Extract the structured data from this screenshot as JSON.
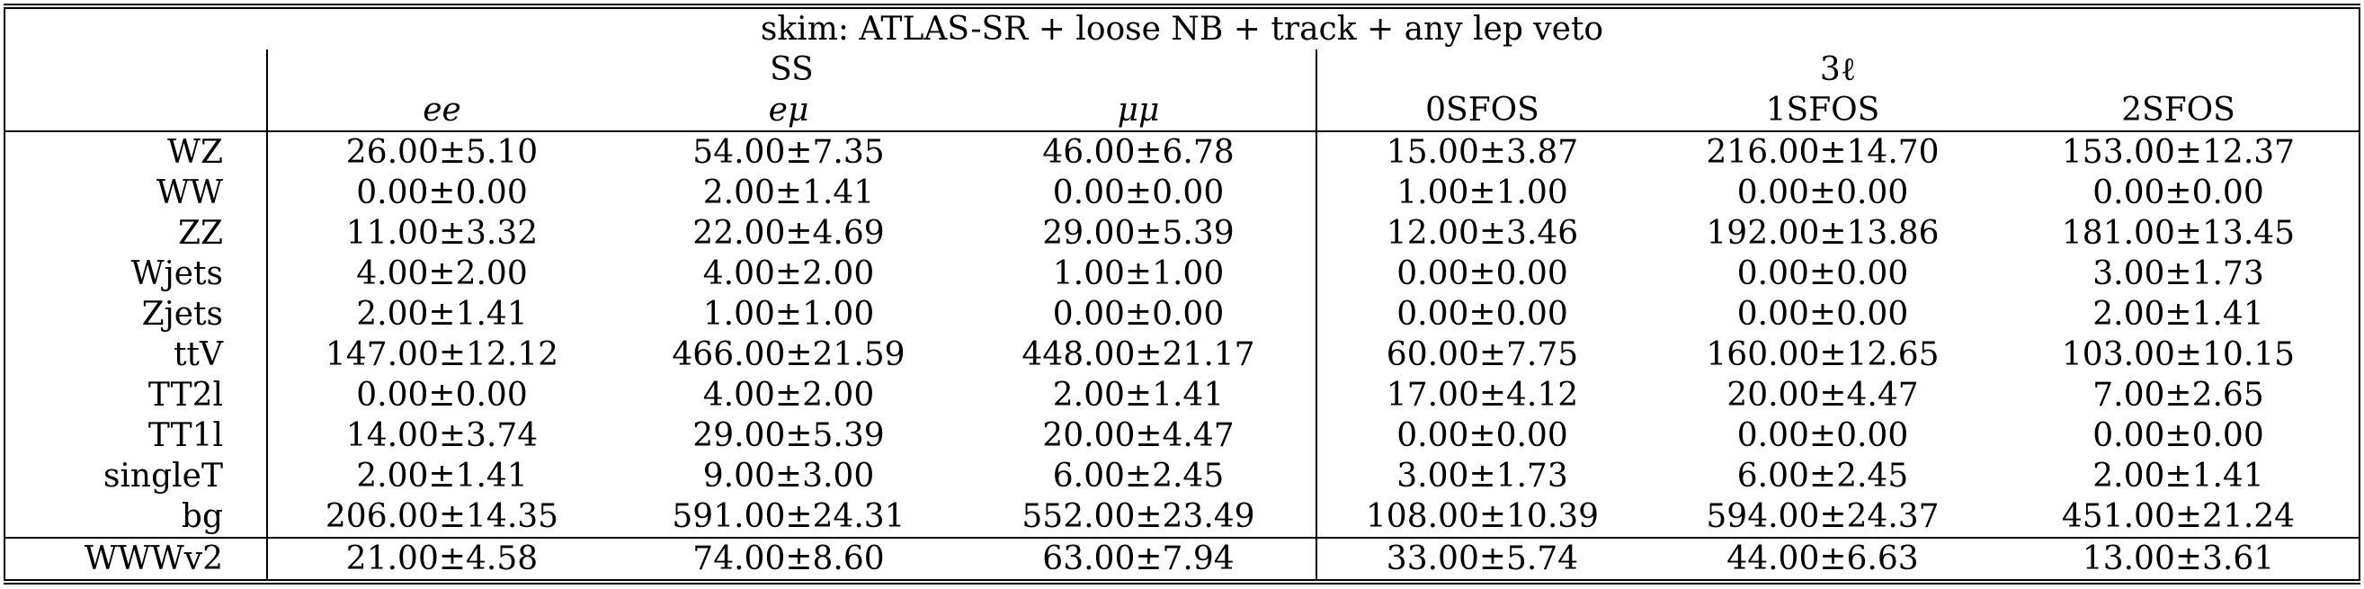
{
  "table": {
    "skim_title": "skim: ATLAS-SR + loose NB + track + any lep veto",
    "groups": {
      "ss": "SS",
      "threel": "3ℓ"
    },
    "columns": [
      "ee",
      "eμ",
      "μμ",
      "0SFOS",
      "1SFOS",
      "2SFOS"
    ],
    "rows": [
      {
        "label": "WZ",
        "cells": [
          "26.00±5.10",
          "54.00±7.35",
          "46.00±6.78",
          "15.00±3.87",
          "216.00±14.70",
          "153.00±12.37"
        ]
      },
      {
        "label": "WW",
        "cells": [
          "0.00±0.00",
          "2.00±1.41",
          "0.00±0.00",
          "1.00±1.00",
          "0.00±0.00",
          "0.00±0.00"
        ]
      },
      {
        "label": "ZZ",
        "cells": [
          "11.00±3.32",
          "22.00±4.69",
          "29.00±5.39",
          "12.00±3.46",
          "192.00±13.86",
          "181.00±13.45"
        ]
      },
      {
        "label": "Wjets",
        "cells": [
          "4.00±2.00",
          "4.00±2.00",
          "1.00±1.00",
          "0.00±0.00",
          "0.00±0.00",
          "3.00±1.73"
        ]
      },
      {
        "label": "Zjets",
        "cells": [
          "2.00±1.41",
          "1.00±1.00",
          "0.00±0.00",
          "0.00±0.00",
          "0.00±0.00",
          "2.00±1.41"
        ]
      },
      {
        "label": "ttV",
        "cells": [
          "147.00±12.12",
          "466.00±21.59",
          "448.00±21.17",
          "60.00±7.75",
          "160.00±12.65",
          "103.00±10.15"
        ]
      },
      {
        "label": "TT2l",
        "cells": [
          "0.00±0.00",
          "4.00±2.00",
          "2.00±1.41",
          "17.00±4.12",
          "20.00±4.47",
          "7.00±2.65"
        ]
      },
      {
        "label": "TT1l",
        "cells": [
          "14.00±3.74",
          "29.00±5.39",
          "20.00±4.47",
          "0.00±0.00",
          "0.00±0.00",
          "0.00±0.00"
        ]
      },
      {
        "label": "singleT",
        "cells": [
          "2.00±1.41",
          "9.00±3.00",
          "6.00±2.45",
          "3.00±1.73",
          "6.00±2.45",
          "2.00±1.41"
        ]
      },
      {
        "label": "bg",
        "cells": [
          "206.00±14.35",
          "591.00±24.31",
          "552.00±23.49",
          "108.00±10.39",
          "594.00±24.37",
          "451.00±21.24"
        ]
      }
    ],
    "signal": {
      "label": "WWWv2",
      "cells": [
        "21.00±4.58",
        "74.00±8.60",
        "63.00±7.94",
        "33.00±5.74",
        "44.00±6.63",
        "13.00±3.61"
      ]
    }
  }
}
